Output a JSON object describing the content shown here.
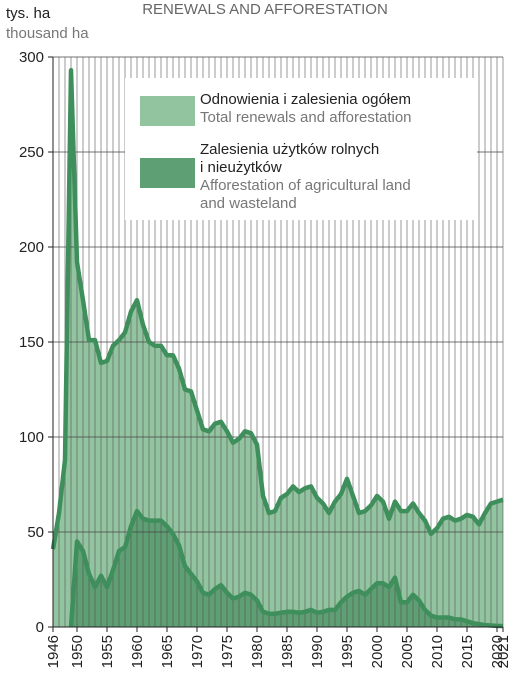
{
  "chart_data": {
    "type": "area",
    "title": "RENEWALS AND AFFORESTATION",
    "y_unit": "tys. ha",
    "y_unit_en": "thousand ha",
    "x": [
      1946,
      1947,
      1948,
      1949,
      1950,
      1951,
      1952,
      1953,
      1954,
      1955,
      1956,
      1957,
      1958,
      1959,
      1960,
      1961,
      1962,
      1963,
      1964,
      1965,
      1966,
      1967,
      1968,
      1969,
      1970,
      1971,
      1972,
      1973,
      1974,
      1975,
      1976,
      1977,
      1978,
      1979,
      1980,
      1981,
      1982,
      1983,
      1984,
      1985,
      1986,
      1987,
      1988,
      1989,
      1990,
      1991,
      1992,
      1993,
      1994,
      1995,
      1996,
      1997,
      1998,
      1999,
      2000,
      2001,
      2002,
      2003,
      2004,
      2005,
      2006,
      2007,
      2008,
      2009,
      2010,
      2011,
      2012,
      2013,
      2014,
      2015,
      2016,
      2017,
      2018,
      2019,
      2020,
      2021
    ],
    "series": [
      {
        "name": [
          "Odnowienia i zalesienia ogółem"
        ],
        "name_en": [
          "Total renewals and afforestation"
        ],
        "color": "#93c4a0",
        "line_color": "#3f8f5c",
        "values": [
          41,
          60,
          88,
          293,
          192,
          172,
          151,
          151,
          139,
          140,
          148,
          151,
          155,
          166,
          172,
          159,
          150,
          148,
          148,
          143,
          143,
          136,
          125,
          124,
          114,
          104,
          103,
          107,
          108,
          103,
          97,
          99,
          103,
          102,
          96,
          69,
          60,
          61,
          68,
          70,
          74,
          71,
          73,
          74,
          68,
          65,
          60,
          66,
          70,
          78,
          69,
          60,
          61,
          64,
          69,
          66,
          57,
          66,
          61,
          61,
          65,
          60,
          56,
          49,
          52,
          57,
          58,
          56,
          57,
          59,
          58,
          54,
          60,
          65,
          66,
          67
        ]
      },
      {
        "name": [
          "Zalesienia użytków rolnych",
          "i nieużytków"
        ],
        "name_en": [
          "Afforestation of agricultural land",
          "and wasteland"
        ],
        "color": "#5e9f74",
        "line_color": "#3f8f5c",
        "values": [
          null,
          null,
          null,
          0,
          45,
          40,
          28,
          21,
          27,
          21,
          30,
          40,
          42,
          53,
          61,
          57,
          56,
          56,
          56,
          53,
          49,
          43,
          32,
          28,
          24,
          18,
          17,
          20,
          22,
          18,
          15,
          16,
          18,
          17,
          14,
          8,
          7,
          7,
          7.5,
          8,
          8,
          7.5,
          8,
          9,
          7.5,
          8,
          9,
          9,
          13,
          16,
          18,
          19,
          17,
          20,
          23,
          23,
          21,
          26,
          13,
          13,
          17,
          14,
          9,
          6,
          5,
          5,
          5,
          4,
          4,
          3,
          2,
          1.5,
          1,
          0.8,
          0.6,
          0.5
        ]
      }
    ],
    "xlim": [
      1946,
      2021
    ],
    "xticks": [
      1946,
      1950,
      1955,
      1960,
      1965,
      1970,
      1975,
      1980,
      1985,
      1990,
      1995,
      2000,
      2005,
      2010,
      2015,
      2020,
      2021
    ],
    "ylim": [
      0,
      300
    ],
    "yticks": [
      0,
      50,
      100,
      150,
      200,
      250,
      300
    ],
    "grid": true
  }
}
